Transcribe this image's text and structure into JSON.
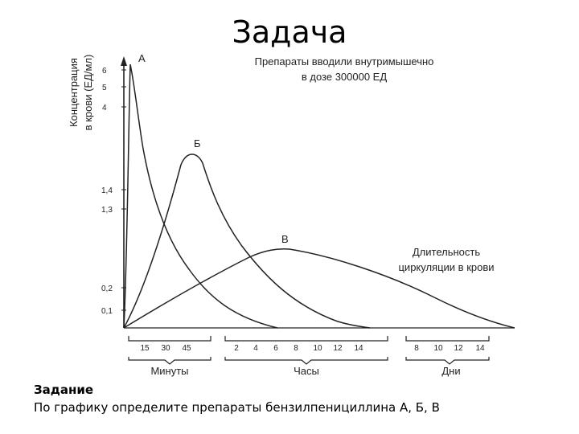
{
  "slide": {
    "title": "Задача",
    "task_heading": "Задание",
    "task_text": "По графику определите препараты бензилпенициллина А, Б, В"
  },
  "chart_data": {
    "type": "line",
    "title_lines": [
      "Препараты вводили внутримышечно",
      "в дозе 300000 ЕД"
    ],
    "ylabel_lines": [
      "Концентрация",
      "в крови (ЕД/мл)"
    ],
    "y_ticks": [
      "6",
      "5",
      "4",
      "1,4",
      "1,3",
      "0,2",
      "0,1"
    ],
    "x_groups": [
      {
        "label": "Минуты",
        "ticks": [
          "15",
          "30",
          "45"
        ]
      },
      {
        "label": "Часы",
        "ticks": [
          "2",
          "4",
          "6",
          "8",
          "10",
          "12",
          "14"
        ]
      },
      {
        "label": "Дни",
        "ticks": [
          "8",
          "10",
          "12",
          "14"
        ]
      }
    ],
    "annotation_lines": [
      "Длительность",
      "циркуляции в крови"
    ],
    "series": [
      {
        "name": "А",
        "points": [
          [
            0,
            0
          ],
          [
            3,
            3.0
          ],
          [
            6,
            5.8
          ],
          [
            8,
            6.3
          ],
          [
            10,
            5.3
          ],
          [
            14,
            4.0
          ],
          [
            20,
            1.45
          ],
          [
            30,
            1.25
          ],
          [
            45,
            0.35
          ],
          [
            "6 ч",
            0.05
          ],
          [
            "8 ч",
            0.0
          ]
        ]
      },
      {
        "name": "Б",
        "points": [
          [
            0,
            0
          ],
          [
            15,
            0.5
          ],
          [
            30,
            1.25
          ],
          [
            40,
            1.45
          ],
          [
            45,
            1.4
          ],
          [
            60,
            1.3
          ],
          [
            "2 ч",
            0.6
          ],
          [
            "4 ч",
            0.25
          ],
          [
            "6 ч",
            0.12
          ],
          [
            "10 ч",
            0.02
          ],
          [
            "14 ч",
            0.0
          ]
        ]
      },
      {
        "name": "В",
        "points": [
          [
            0,
            0
          ],
          [
            15,
            0.04
          ],
          [
            45,
            0.1
          ],
          [
            "2 ч",
            0.18
          ],
          [
            "6 ч",
            0.26
          ],
          [
            "8 ч",
            0.26
          ],
          [
            "12 ч",
            0.22
          ],
          [
            "8 дн",
            0.14
          ],
          [
            "12 дн",
            0.07
          ],
          [
            "14 дн",
            0.02
          ]
        ]
      }
    ]
  }
}
